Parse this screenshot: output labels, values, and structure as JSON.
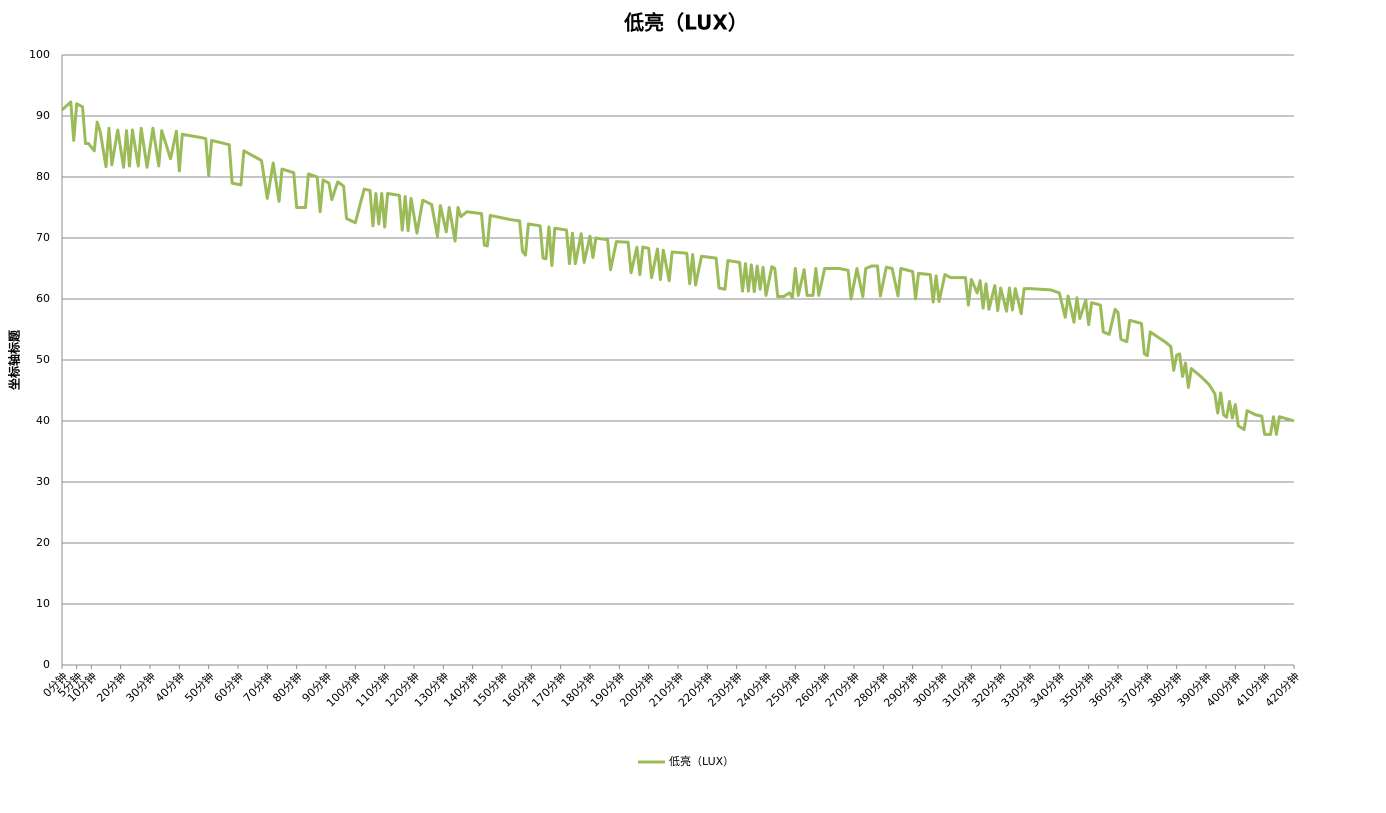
{
  "chart_data": {
    "type": "line",
    "title": "低亮（LUX）",
    "y_label": "坐标轴标题",
    "x": [
      0,
      3,
      4,
      5,
      7,
      8,
      9,
      11,
      12,
      13,
      15,
      16,
      17,
      19,
      21,
      22,
      23,
      24,
      26,
      27,
      29,
      31,
      33,
      34,
      37,
      39,
      40,
      41,
      47,
      49,
      50,
      51,
      57,
      58,
      61,
      62,
      68,
      70,
      72,
      74,
      75,
      79,
      80,
      83,
      84,
      87,
      88,
      89,
      91,
      92,
      94,
      96,
      97,
      100,
      103,
      105,
      106,
      107,
      108,
      109,
      110,
      111,
      115,
      116,
      117,
      118,
      119,
      121,
      123,
      126,
      128,
      129,
      131,
      132,
      134,
      135,
      136,
      138,
      143,
      144,
      145,
      146,
      153,
      156,
      157,
      158,
      159,
      163,
      164,
      165,
      166,
      167,
      168,
      172,
      173,
      174,
      175,
      177,
      178,
      180,
      181,
      182,
      186,
      187,
      189,
      193,
      194,
      196,
      197,
      198,
      200,
      201,
      203,
      204,
      205,
      207,
      208,
      213,
      214,
      215,
      216,
      218,
      223,
      224,
      226,
      227,
      231,
      232,
      233,
      234,
      235,
      236,
      237,
      238,
      239,
      240,
      242,
      243,
      244,
      246,
      248,
      249,
      250,
      251,
      253,
      254,
      256,
      257,
      258,
      260,
      265,
      268,
      269,
      271,
      273,
      274,
      276,
      278,
      279,
      281,
      283,
      285,
      286,
      290,
      291,
      292,
      296,
      297,
      298,
      299,
      301,
      303,
      306,
      308,
      309,
      310,
      312,
      313,
      314,
      315,
      316,
      318,
      319,
      320,
      322,
      323,
      324,
      325,
      327,
      328,
      330,
      337,
      340,
      342,
      343,
      345,
      346,
      347,
      349,
      350,
      351,
      354,
      355,
      357,
      359,
      360,
      361,
      363,
      364,
      368,
      369,
      370,
      371,
      376,
      378,
      379,
      380,
      381,
      382,
      383,
      384,
      385,
      388,
      391,
      393,
      394,
      395,
      396,
      397,
      398,
      399,
      400,
      401,
      403,
      404,
      407,
      409,
      410,
      412,
      413,
      414,
      415,
      418,
      420
    ],
    "series": [
      {
        "name": "低亮（LUX）",
        "color": "#9bbb59",
        "values": [
          91,
          92.3,
          86,
          92,
          91.5,
          85.5,
          85.5,
          84.3,
          89,
          87.5,
          81.7,
          88,
          82,
          87.7,
          81.6,
          87.6,
          81.8,
          87.7,
          81.8,
          88,
          81.6,
          88,
          81.8,
          87.6,
          83,
          87.5,
          81,
          87,
          86.5,
          86.3,
          80.3,
          86,
          85.3,
          79,
          78.7,
          84.3,
          82.7,
          76.5,
          82.3,
          76,
          81.3,
          80.7,
          75,
          75,
          80.5,
          80,
          74.3,
          79.5,
          79,
          76.3,
          79.2,
          78.5,
          73.2,
          72.5,
          78,
          77.8,
          72,
          77.3,
          72.3,
          77.3,
          71.8,
          77.3,
          77,
          71.3,
          76.8,
          71.2,
          76.5,
          70.8,
          76.2,
          75.5,
          70.3,
          75.3,
          71,
          75,
          69.5,
          75,
          73.5,
          74.3,
          74,
          68.8,
          68.7,
          73.7,
          73,
          72.8,
          67.8,
          67.2,
          72.3,
          72,
          66.7,
          66.6,
          71.8,
          65.5,
          71.6,
          71.3,
          65.8,
          70.8,
          65.8,
          70.7,
          66,
          70.3,
          66.8,
          70,
          69.7,
          64.8,
          69.4,
          69.3,
          64.3,
          68.5,
          64,
          68.5,
          68.3,
          63.5,
          68.2,
          63.2,
          68,
          63,
          67.7,
          67.5,
          62.5,
          67.3,
          62.3,
          67,
          66.7,
          61.8,
          61.6,
          66.3,
          66,
          61.3,
          65.8,
          61.3,
          65.6,
          61.2,
          65.4,
          61.6,
          65.2,
          60.6,
          65.3,
          65,
          60.4,
          60.4,
          61,
          60.2,
          65,
          60.6,
          64.8,
          60.6,
          60.6,
          65,
          60.6,
          65,
          65,
          64.7,
          60,
          65,
          60.4,
          65,
          65.4,
          65.4,
          60.5,
          65.2,
          65,
          60.5,
          65,
          64.5,
          60,
          64.2,
          64,
          59.5,
          63.8,
          59.6,
          64,
          63.5,
          63.5,
          63.5,
          59,
          63.2,
          61,
          63,
          58.5,
          62.5,
          58.3,
          62.2,
          58.1,
          61.8,
          58,
          61.8,
          58.2,
          61.7,
          57.6,
          61.7,
          61.7,
          61.5,
          61,
          57,
          60.5,
          56.2,
          60.2,
          56.8,
          59.8,
          55.8,
          59.4,
          59,
          54.6,
          54.2,
          58.3,
          57.8,
          53.4,
          53,
          56.5,
          56,
          51,
          50.7,
          54.6,
          53,
          52.2,
          48.3,
          50.8,
          51,
          47.3,
          49.5,
          45.5,
          48.6,
          47.4,
          46,
          44.5,
          41.3,
          44.6,
          41,
          40.6,
          43.2,
          40.5,
          42.7,
          39.2,
          38.6,
          41.7,
          41,
          40.8,
          37.8,
          37.8,
          40.7,
          37.8,
          40.7,
          40.3,
          40
        ]
      }
    ],
    "xlim": [
      0,
      420
    ],
    "xticks": [
      {
        "value": 0,
        "label": "0分钟"
      },
      {
        "value": 5,
        "label": "5分钟"
      },
      {
        "value": 10,
        "label": "10分钟"
      },
      {
        "value": 20,
        "label": "20分钟"
      },
      {
        "value": 30,
        "label": "30分钟"
      },
      {
        "value": 40,
        "label": "40分钟"
      },
      {
        "value": 50,
        "label": "50分钟"
      },
      {
        "value": 60,
        "label": "60分钟"
      },
      {
        "value": 70,
        "label": "70分钟"
      },
      {
        "value": 80,
        "label": "80分钟"
      },
      {
        "value": 90,
        "label": "90分钟"
      },
      {
        "value": 100,
        "label": "100分钟"
      },
      {
        "value": 110,
        "label": "110分钟"
      },
      {
        "value": 120,
        "label": "120分钟"
      },
      {
        "value": 130,
        "label": "130分钟"
      },
      {
        "value": 140,
        "label": "140分钟"
      },
      {
        "value": 150,
        "label": "150分钟"
      },
      {
        "value": 160,
        "label": "160分钟"
      },
      {
        "value": 170,
        "label": "170分钟"
      },
      {
        "value": 180,
        "label": "180分钟"
      },
      {
        "value": 190,
        "label": "190分钟"
      },
      {
        "value": 200,
        "label": "200分钟"
      },
      {
        "value": 210,
        "label": "210分钟"
      },
      {
        "value": 220,
        "label": "220分钟"
      },
      {
        "value": 230,
        "label": "230分钟"
      },
      {
        "value": 240,
        "label": "240分钟"
      },
      {
        "value": 250,
        "label": "250分钟"
      },
      {
        "value": 260,
        "label": "260分钟"
      },
      {
        "value": 270,
        "label": "270分钟"
      },
      {
        "value": 280,
        "label": "280分钟"
      },
      {
        "value": 290,
        "label": "290分钟"
      },
      {
        "value": 300,
        "label": "300分钟"
      },
      {
        "value": 310,
        "label": "310分钟"
      },
      {
        "value": 320,
        "label": "320分钟"
      },
      {
        "value": 330,
        "label": "330分钟"
      },
      {
        "value": 340,
        "label": "340分钟"
      },
      {
        "value": 350,
        "label": "350分钟"
      },
      {
        "value": 360,
        "label": "360分钟"
      },
      {
        "value": 370,
        "label": "370分钟"
      },
      {
        "value": 380,
        "label": "380分钟"
      },
      {
        "value": 390,
        "label": "390分钟"
      },
      {
        "value": 400,
        "label": "400分钟"
      },
      {
        "value": 410,
        "label": "410分钟"
      },
      {
        "value": 420,
        "label": "420分钟"
      }
    ],
    "ylim": [
      0,
      100
    ],
    "yticks": [
      0,
      10,
      20,
      30,
      40,
      50,
      60,
      70,
      80,
      90,
      100
    ],
    "grid": true,
    "legend": "bottom"
  }
}
